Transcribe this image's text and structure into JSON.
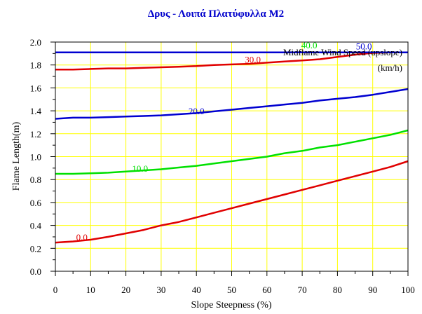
{
  "chart_data": {
    "type": "line",
    "title": "Δρυς - Λοιπά Πλατύφυλλα M2",
    "xlabel": "Slope Steepness (%)",
    "ylabel": "Flame Length(m)",
    "xlim": [
      0,
      100
    ],
    "ylim": [
      0,
      2.0
    ],
    "x_ticks": [
      0,
      10,
      20,
      30,
      40,
      50,
      60,
      70,
      80,
      90,
      100
    ],
    "y_ticks": [
      0.0,
      0.2,
      0.4,
      0.6,
      0.8,
      1.0,
      1.2,
      1.4,
      1.6,
      1.8,
      2.0
    ],
    "grid": true,
    "legend": {
      "title_line1": "Midflame Wind Speed (upslope)",
      "title_line2": "(km/h)",
      "placement": "top-right"
    },
    "x": [
      0,
      5,
      10,
      15,
      20,
      25,
      30,
      35,
      40,
      45,
      50,
      55,
      60,
      65,
      70,
      75,
      80,
      85,
      90,
      95,
      100
    ],
    "series": [
      {
        "name": "0.0",
        "color": "#e00000",
        "values": [
          0.25,
          0.26,
          0.275,
          0.3,
          0.33,
          0.36,
          0.4,
          0.43,
          0.47,
          0.51,
          0.55,
          0.59,
          0.63,
          0.67,
          0.71,
          0.75,
          0.79,
          0.83,
          0.87,
          0.91,
          0.96
        ]
      },
      {
        "name": "10.0",
        "color": "#00e000",
        "values": [
          0.85,
          0.85,
          0.855,
          0.86,
          0.87,
          0.88,
          0.89,
          0.905,
          0.92,
          0.94,
          0.96,
          0.98,
          1.0,
          1.03,
          1.05,
          1.08,
          1.1,
          1.13,
          1.16,
          1.19,
          1.23
        ]
      },
      {
        "name": "20.0",
        "color": "#0000d0",
        "values": [
          1.33,
          1.34,
          1.34,
          1.345,
          1.35,
          1.355,
          1.36,
          1.37,
          1.38,
          1.395,
          1.41,
          1.425,
          1.44,
          1.455,
          1.47,
          1.49,
          1.505,
          1.52,
          1.54,
          1.565,
          1.59
        ]
      },
      {
        "name": "30.0",
        "color": "#e00000",
        "values": [
          1.76,
          1.76,
          1.765,
          1.77,
          1.77,
          1.775,
          1.78,
          1.785,
          1.79,
          1.8,
          1.805,
          1.81,
          1.82,
          1.83,
          1.84,
          1.85,
          1.87,
          1.89,
          1.905,
          1.91,
          1.91
        ]
      },
      {
        "name": "40.0",
        "color": "#00e000",
        "values": [
          1.91,
          1.91,
          1.91,
          1.91,
          1.91,
          1.91,
          1.91,
          1.91,
          1.91,
          1.91,
          1.91,
          1.91,
          1.91,
          1.91,
          1.91,
          1.91,
          1.91,
          1.91,
          1.91,
          1.91,
          1.91
        ]
      },
      {
        "name": "50.0",
        "color": "#0000d0",
        "values": [
          1.91,
          1.91,
          1.91,
          1.91,
          1.91,
          1.91,
          1.91,
          1.91,
          1.91,
          1.91,
          1.91,
          1.91,
          1.91,
          1.91,
          1.91,
          1.91,
          1.91,
          1.91,
          1.91,
          1.91,
          1.91
        ]
      }
    ],
    "line_labels": [
      {
        "text": "0.0",
        "x": 7.5,
        "y": 0.27,
        "color": "#e00000"
      },
      {
        "text": "10.0",
        "x": 24,
        "y": 0.87,
        "color": "#00e000"
      },
      {
        "text": "20.0",
        "x": 40,
        "y": 1.37,
        "color": "#0000d0"
      },
      {
        "text": "30.0",
        "x": 56,
        "y": 1.82,
        "color": "#e00000"
      },
      {
        "text": "40.0",
        "x": 72,
        "y": 1.945,
        "color": "#00e000"
      },
      {
        "text": "50.0",
        "x": 87.5,
        "y": 1.935,
        "color": "#0000d0"
      }
    ]
  }
}
